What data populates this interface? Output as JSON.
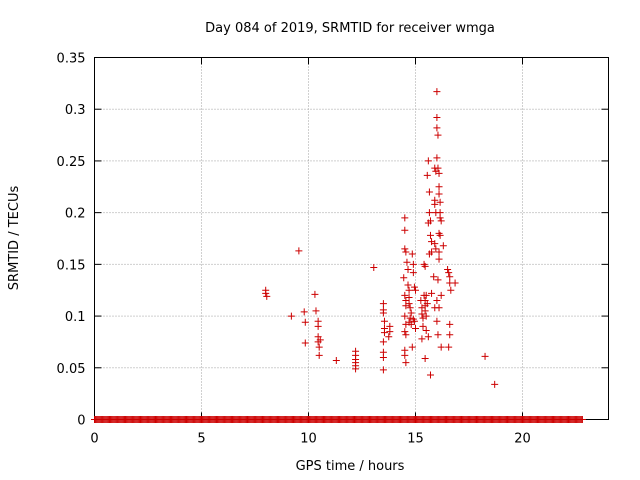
{
  "chart_data": {
    "type": "scatter",
    "title": "Day 084 of 2019, SRMTID for receiver wmga",
    "xlabel": "GPS time / hours",
    "ylabel": "SRMTID / TECUs",
    "xlim": [
      0,
      23.5
    ],
    "ylim": [
      0,
      0.35
    ],
    "grid": true,
    "xticks": [
      0,
      5,
      10,
      15,
      20
    ],
    "xtick_labels": [
      "0",
      "5",
      "10",
      "15",
      "20"
    ],
    "yticks": [
      0,
      0.05,
      0.1,
      0.15,
      0.2,
      0.25,
      0.3,
      0.35
    ],
    "ytick_labels": [
      "0",
      "0.05",
      "0.1",
      "0.15",
      "0.2",
      "0.25",
      "0.3",
      "0.35"
    ],
    "marker": "plus",
    "marker_color": "#cc0000",
    "baseline": {
      "x_start": 0.0,
      "x_end": 22.8,
      "step": 0.05,
      "y": 0
    },
    "series": [
      {
        "name": "SRMTID",
        "points": [
          [
            8.0,
            0.125
          ],
          [
            8.0,
            0.122
          ],
          [
            8.05,
            0.119
          ],
          [
            9.2,
            0.1
          ],
          [
            9.55,
            0.163
          ],
          [
            9.8,
            0.104
          ],
          [
            9.85,
            0.094
          ],
          [
            9.85,
            0.074
          ],
          [
            10.3,
            0.121
          ],
          [
            10.35,
            0.105
          ],
          [
            10.45,
            0.095
          ],
          [
            10.45,
            0.09
          ],
          [
            10.45,
            0.08
          ],
          [
            10.45,
            0.075
          ],
          [
            10.5,
            0.07
          ],
          [
            10.5,
            0.062
          ],
          [
            10.55,
            0.077
          ],
          [
            11.3,
            0.057
          ],
          [
            12.2,
            0.066
          ],
          [
            12.2,
            0.062
          ],
          [
            12.2,
            0.058
          ],
          [
            12.2,
            0.055
          ],
          [
            12.2,
            0.052
          ],
          [
            12.2,
            0.049
          ],
          [
            13.05,
            0.147
          ],
          [
            13.5,
            0.112
          ],
          [
            13.5,
            0.106
          ],
          [
            13.5,
            0.103
          ],
          [
            13.55,
            0.095
          ],
          [
            13.55,
            0.088
          ],
          [
            13.55,
            0.084
          ],
          [
            13.5,
            0.075
          ],
          [
            13.5,
            0.065
          ],
          [
            13.5,
            0.06
          ],
          [
            13.5,
            0.048
          ],
          [
            13.8,
            0.09
          ],
          [
            13.8,
            0.085
          ],
          [
            13.75,
            0.08
          ],
          [
            14.5,
            0.195
          ],
          [
            14.5,
            0.183
          ],
          [
            14.5,
            0.165
          ],
          [
            14.55,
            0.162
          ],
          [
            14.45,
            0.137
          ],
          [
            14.5,
            0.12
          ],
          [
            14.55,
            0.115
          ],
          [
            14.55,
            0.11
          ],
          [
            14.5,
            0.1
          ],
          [
            14.55,
            0.092
          ],
          [
            14.5,
            0.085
          ],
          [
            14.55,
            0.082
          ],
          [
            14.5,
            0.067
          ],
          [
            14.5,
            0.062
          ],
          [
            14.55,
            0.055
          ],
          [
            14.6,
            0.152
          ],
          [
            14.65,
            0.145
          ],
          [
            14.65,
            0.13
          ],
          [
            14.7,
            0.125
          ],
          [
            14.7,
            0.118
          ],
          [
            14.7,
            0.112
          ],
          [
            14.75,
            0.108
          ],
          [
            14.8,
            0.103
          ],
          [
            14.75,
            0.098
          ],
          [
            14.7,
            0.094
          ],
          [
            14.8,
            0.092
          ],
          [
            14.85,
            0.16
          ],
          [
            14.9,
            0.15
          ],
          [
            14.9,
            0.142
          ],
          [
            14.95,
            0.128
          ],
          [
            15.0,
            0.125
          ],
          [
            14.9,
            0.097
          ],
          [
            14.95,
            0.095
          ],
          [
            15.0,
            0.088
          ],
          [
            14.85,
            0.07
          ],
          [
            15.25,
            0.115
          ],
          [
            15.3,
            0.108
          ],
          [
            15.3,
            0.102
          ],
          [
            15.35,
            0.098
          ],
          [
            15.35,
            0.09
          ],
          [
            15.4,
            0.12
          ],
          [
            15.45,
            0.115
          ],
          [
            15.45,
            0.11
          ],
          [
            15.4,
            0.15
          ],
          [
            15.45,
            0.148
          ],
          [
            15.45,
            0.105
          ],
          [
            15.5,
            0.1
          ],
          [
            15.3,
            0.078
          ],
          [
            15.5,
            0.12
          ],
          [
            15.55,
            0.112
          ],
          [
            15.5,
            0.086
          ],
          [
            15.45,
            0.059
          ],
          [
            15.55,
            0.236
          ],
          [
            15.6,
            0.25
          ],
          [
            15.65,
            0.22
          ],
          [
            15.65,
            0.2
          ],
          [
            15.7,
            0.192
          ],
          [
            15.6,
            0.19
          ],
          [
            15.7,
            0.178
          ],
          [
            15.75,
            0.172
          ],
          [
            15.75,
            0.162
          ],
          [
            15.65,
            0.16
          ],
          [
            15.75,
            0.122
          ],
          [
            15.6,
            0.08
          ],
          [
            15.7,
            0.043
          ],
          [
            15.9,
            0.243
          ],
          [
            15.95,
            0.24
          ],
          [
            15.9,
            0.212
          ],
          [
            15.9,
            0.208
          ],
          [
            15.95,
            0.2
          ],
          [
            15.9,
            0.17
          ],
          [
            15.95,
            0.165
          ],
          [
            15.85,
            0.138
          ],
          [
            15.9,
            0.108
          ],
          [
            16.0,
            0.317
          ],
          [
            16.0,
            0.292
          ],
          [
            16.0,
            0.282
          ],
          [
            16.05,
            0.275
          ],
          [
            16.0,
            0.253
          ],
          [
            16.05,
            0.243
          ],
          [
            16.1,
            0.238
          ],
          [
            16.1,
            0.225
          ],
          [
            16.1,
            0.218
          ],
          [
            16.15,
            0.21
          ],
          [
            16.15,
            0.2
          ],
          [
            16.15,
            0.195
          ],
          [
            16.2,
            0.192
          ],
          [
            16.1,
            0.18
          ],
          [
            16.15,
            0.178
          ],
          [
            16.1,
            0.162
          ],
          [
            16.1,
            0.155
          ],
          [
            16.05,
            0.135
          ],
          [
            16.2,
            0.12
          ],
          [
            16.0,
            0.115
          ],
          [
            16.1,
            0.108
          ],
          [
            16.0,
            0.095
          ],
          [
            16.05,
            0.082
          ],
          [
            16.2,
            0.07
          ],
          [
            16.3,
            0.168
          ],
          [
            16.5,
            0.145
          ],
          [
            16.55,
            0.142
          ],
          [
            16.6,
            0.138
          ],
          [
            16.6,
            0.132
          ],
          [
            16.65,
            0.125
          ],
          [
            16.6,
            0.092
          ],
          [
            16.6,
            0.082
          ],
          [
            16.55,
            0.07
          ],
          [
            16.85,
            0.132
          ],
          [
            18.25,
            0.061
          ],
          [
            18.7,
            0.034
          ]
        ]
      }
    ]
  }
}
